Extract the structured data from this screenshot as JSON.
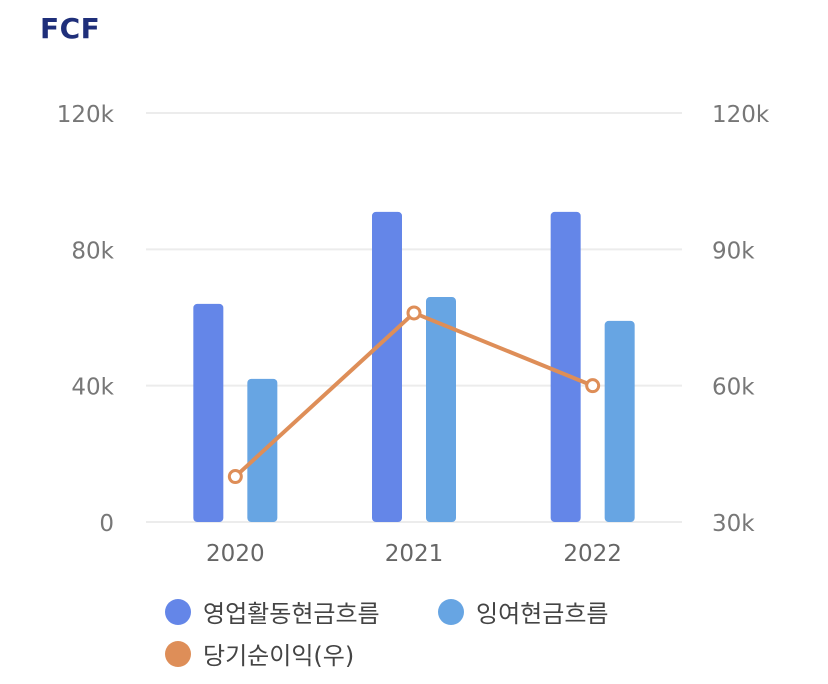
{
  "header": {
    "title": "FCF"
  },
  "colors": {
    "operating_cf": "#6486E8",
    "surplus_cf": "#67A5E3",
    "net_income": "#DE8E58",
    "grid": "#ECECEC",
    "tick": "#777777"
  },
  "legend": [
    {
      "label": "영업활동현금흐름",
      "color": "#6486E8"
    },
    {
      "label": "잉여현금흐름",
      "color": "#67A5E3"
    },
    {
      "label": "당기순이익(우)",
      "color": "#DE8E58"
    }
  ],
  "chart_data": {
    "type": "bar",
    "title": "FCF",
    "categories": [
      "2020",
      "2021",
      "2022"
    ],
    "series": [
      {
        "name": "영업활동현금흐름",
        "type": "bar",
        "axis": "left",
        "values": [
          64000,
          91000,
          91000
        ]
      },
      {
        "name": "잉여현금흐름",
        "type": "bar",
        "axis": "left",
        "values": [
          42000,
          66000,
          59000
        ]
      },
      {
        "name": "당기순이익(우)",
        "type": "line",
        "axis": "right",
        "values": [
          40000,
          76000,
          60000
        ]
      }
    ],
    "y_left": {
      "min": 0,
      "max": 120000,
      "ticks": [
        "0",
        "40k",
        "80k",
        "120k"
      ]
    },
    "y_right": {
      "min": 30000,
      "max": 120000,
      "ticks": [
        "30k",
        "60k",
        "90k",
        "120k"
      ]
    },
    "grid": true,
    "legend_position": "bottom"
  }
}
